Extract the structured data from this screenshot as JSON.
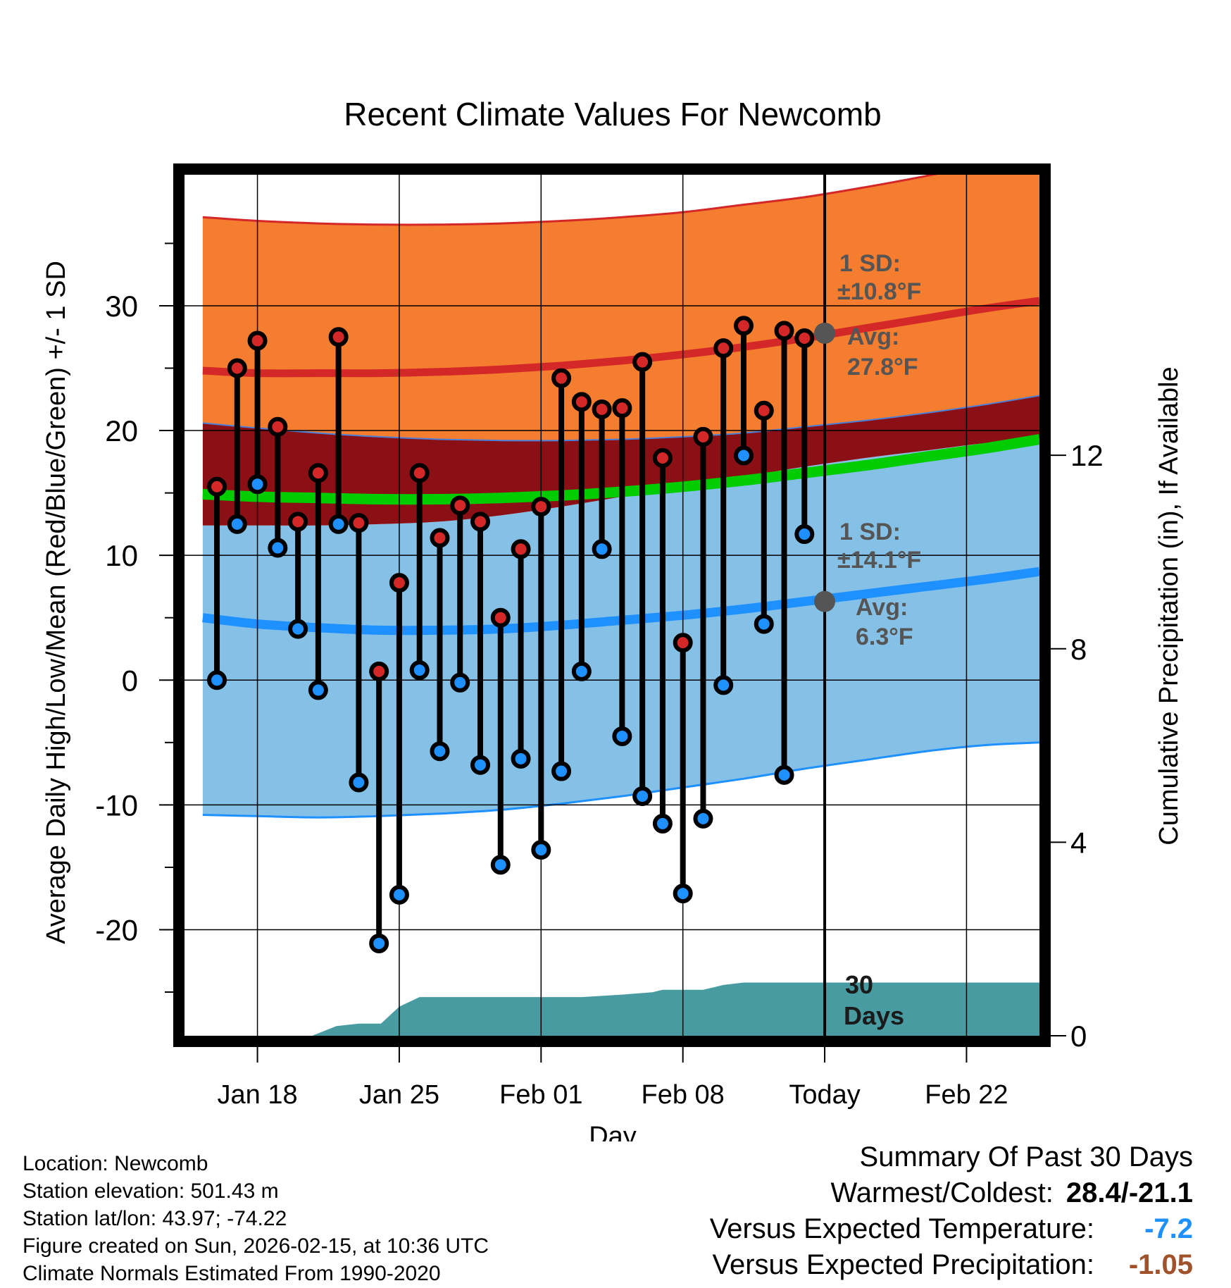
{
  "chart_data": {
    "type": "line",
    "title": "Recent Climate Values For Newcomb",
    "xlabel": "Day",
    "ylabel": "Average Daily High/Low/Mean (Red/Blue/Green) +/- 1 SD",
    "y2label": "Cumulative Precipitation (in), If Available",
    "xlim": [
      -3.6,
      38.6
    ],
    "ylim": [
      -28.5,
      40.5
    ],
    "y2lim": [
      0,
      17.8
    ],
    "x_tick_positions": [
      0,
      7,
      14,
      21,
      28,
      35
    ],
    "x_tick_labels": [
      "Jan 18",
      "Jan 25",
      "Feb 01",
      "Feb 08",
      "Today",
      "Feb 22"
    ],
    "y_ticks": [
      -20,
      -10,
      0,
      10,
      20,
      30
    ],
    "y_tick_labels": [
      "-20",
      "-10",
      "0",
      "10",
      "20",
      "30"
    ],
    "y2_ticks": [
      0,
      4,
      8,
      12
    ],
    "y2_tick_labels": [
      "0",
      "4",
      "8",
      "12"
    ],
    "normals": {
      "x": [
        -2.7,
        0,
        3,
        6,
        9,
        12,
        15,
        18,
        21,
        24,
        27,
        30,
        33,
        36,
        38.6
      ],
      "high_mean": [
        24.8,
        24.6,
        24.6,
        24.6,
        24.7,
        24.9,
        25.2,
        25.6,
        26.1,
        26.7,
        27.4,
        28.2,
        29.0,
        29.8,
        30.4
      ],
      "high_upper": [
        37.1,
        36.8,
        36.6,
        36.5,
        36.5,
        36.6,
        36.8,
        37.1,
        37.5,
        38.1,
        38.7,
        39.5,
        40.4,
        41.4,
        42.3
      ],
      "high_lower": [
        20.6,
        20.2,
        19.8,
        19.5,
        19.3,
        19.2,
        19.2,
        19.3,
        19.5,
        19.8,
        20.3,
        20.8,
        21.4,
        22.1,
        22.8
      ],
      "mean_mean": [
        14.9,
        14.7,
        14.6,
        14.5,
        14.5,
        14.6,
        14.8,
        15.1,
        15.5,
        16.0,
        16.6,
        17.2,
        17.9,
        18.6,
        19.3
      ],
      "low_mean": [
        5.0,
        4.5,
        4.2,
        4.0,
        4.0,
        4.1,
        4.4,
        4.8,
        5.2,
        5.7,
        6.3,
        6.9,
        7.5,
        8.1,
        8.7
      ],
      "low_upper": [
        12.4,
        12.4,
        12.4,
        12.5,
        12.7,
        13.2,
        13.9,
        14.7,
        15.5,
        16.3,
        17.1,
        17.8,
        18.4,
        19.0,
        19.2
      ],
      "low_lower": [
        -10.8,
        -10.9,
        -11.0,
        -10.9,
        -10.7,
        -10.4,
        -9.9,
        -9.3,
        -8.6,
        -7.9,
        -7.1,
        -6.4,
        -5.7,
        -5.2,
        -5.0
      ]
    },
    "daily": {
      "x": [
        -2,
        -1,
        0,
        1,
        2,
        3,
        4,
        5,
        6,
        7,
        8,
        9,
        10,
        11,
        12,
        13,
        14,
        15,
        16,
        17,
        18,
        19,
        20,
        21,
        22,
        23,
        24,
        25,
        26,
        27
      ],
      "high": [
        15.5,
        25.0,
        27.2,
        20.3,
        12.7,
        16.6,
        27.5,
        12.6,
        0.7,
        7.8,
        16.6,
        11.4,
        14.0,
        12.7,
        5.0,
        10.5,
        13.9,
        24.2,
        22.3,
        21.7,
        21.8,
        25.5,
        17.8,
        3.0,
        19.5,
        26.6,
        28.4,
        21.6,
        28.0,
        27.4
      ],
      "low": [
        0.0,
        12.5,
        15.7,
        10.6,
        4.1,
        -0.8,
        12.5,
        -8.2,
        -21.1,
        -17.2,
        0.8,
        -5.7,
        -0.2,
        -6.8,
        -14.8,
        -6.3,
        -13.6,
        -7.3,
        0.7,
        10.5,
        -4.5,
        -9.3,
        -11.5,
        -17.1,
        -11.1,
        -0.4,
        18.0,
        4.5,
        -7.6,
        11.7
      ]
    },
    "precip_cumulative": {
      "x": [
        -3.6,
        2.7,
        3.9,
        5,
        6.1,
        7,
        8,
        9,
        10,
        12,
        14,
        16,
        18,
        19.5,
        20,
        21,
        22,
        23,
        24,
        25,
        26,
        28,
        30,
        32,
        34,
        36,
        38.6
      ],
      "y": [
        0,
        0,
        0.2,
        0.25,
        0.25,
        0.6,
        0.8,
        0.8,
        0.8,
        0.8,
        0.8,
        0.8,
        0.85,
        0.9,
        0.95,
        0.95,
        0.95,
        1.05,
        1.1,
        1.1,
        1.1,
        1.1,
        1.1,
        1.1,
        1.1,
        1.1,
        1.1
      ]
    },
    "annotations": {
      "high_sd_label": "1 SD:",
      "high_sd_value": "±10.8°F",
      "high_avg_label": "Avg:",
      "high_avg_value": "27.8°F",
      "high_avg": 27.8,
      "low_sd_label": "1 SD:",
      "low_sd_value": "±14.1°F",
      "low_avg_label": "Avg:",
      "low_avg_value": "6.3°F",
      "low_avg": 6.3,
      "precip_line1": "30",
      "precip_line2": "Days"
    },
    "colors": {
      "high_band": "#f47d30",
      "high_line": "#d42828",
      "low_band": "#85c1e6",
      "low_line": "#1e90ff",
      "overlap": "#8b1015",
      "mean_line": "#00cc00",
      "precip_fill": "#479ba1",
      "annotation_text": "#555555",
      "marker_high": "#d42828",
      "marker_low": "#1e90ff"
    }
  },
  "footer": {
    "location": "Location: Newcomb",
    "elevation": "Station elevation: 501.43 m",
    "latlon": "Station lat/lon: 43.97; -74.22",
    "created": "Figure created on Sun, 2026-02-15, at 10:36 UTC",
    "normals": "Climate Normals Estimated From 1990-2020"
  },
  "summary": {
    "title": "Summary Of Past 30 Days",
    "warm_cold_label": "Warmest/Coldest:",
    "warm_cold_value": "28.4/-21.1",
    "temp_label": "Versus Expected Temperature:",
    "temp_value": "-7.2",
    "temp_color": "#1e90ff",
    "precip_label": "Versus Expected Precipitation:",
    "precip_value": "-1.05",
    "precip_color": "#a0522d"
  }
}
